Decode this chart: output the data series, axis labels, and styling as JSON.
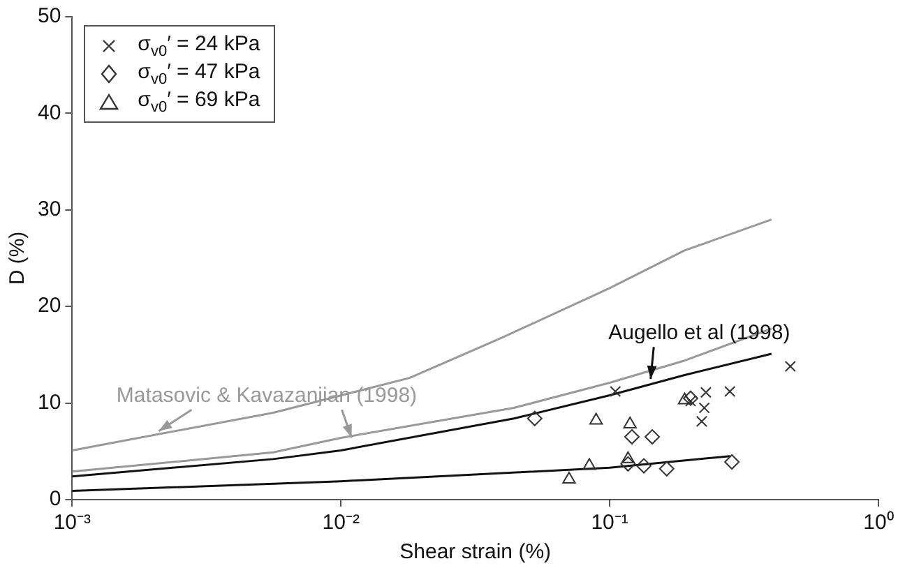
{
  "chart_data": {
    "type": "scatter",
    "xlabel": "Shear strain (%)",
    "ylabel": "D (%)",
    "log": "x",
    "xlim": [
      0.001,
      1
    ],
    "xticks": [
      {
        "value": 0.001,
        "label": "10⁻³"
      },
      {
        "value": 0.01,
        "label": "10⁻²"
      },
      {
        "value": 0.1,
        "label": "10⁻¹"
      },
      {
        "value": 1,
        "label": "10⁰"
      }
    ],
    "ylim": [
      0,
      50
    ],
    "yticks": [
      0,
      10,
      20,
      30,
      40,
      50
    ],
    "grid": false,
    "legend": "top left",
    "series": [
      {
        "name": "σ$_{v0}$′ = 24 kPa",
        "color": "#333333",
        "marker": "cross",
        "x": [
          0.105,
          0.2,
          0.228,
          0.225,
          0.22,
          0.28,
          0.47
        ],
        "values": [
          11.2,
          10.2,
          11.1,
          9.5,
          8.1,
          11.2,
          13.8
        ]
      },
      {
        "name": "σ$_{v0}$′ = 47 kPa",
        "color": "#333333",
        "marker": "diamond",
        "x": [
          0.0526,
          0.2,
          0.121,
          0.144,
          0.117,
          0.134,
          0.163,
          0.285
        ],
        "values": [
          8.4,
          10.5,
          6.5,
          6.5,
          3.7,
          3.5,
          3.2,
          3.9
        ]
      },
      {
        "name": "σ$_{v0}$′ = 69 kPa",
        "color": "#333333",
        "marker": "triangle",
        "x": [
          0.0706,
          0.084,
          0.089,
          0.119,
          0.117,
          0.19
        ],
        "values": [
          2.1,
          3.5,
          8.2,
          7.8,
          4.2,
          10.3
        ]
      },
      {
        "type": "line",
        "color": "#999999",
        "marker": "none",
        "x": [
          0.001,
          0.0056,
          0.018,
          0.04,
          0.1,
          0.19,
          0.4
        ],
        "values": [
          5.1,
          9.0,
          12.6,
          16.8,
          21.9,
          25.8,
          29.0
        ]
      },
      {
        "type": "line",
        "color": "#999999",
        "marker": "none",
        "x": [
          0.001,
          0.0056,
          0.01,
          0.044,
          0.1,
          0.19,
          0.4
        ],
        "values": [
          2.9,
          4.9,
          6.4,
          9.5,
          12.1,
          14.4,
          17.7
        ]
      },
      {
        "type": "line",
        "color": "#111111",
        "marker": "none",
        "x": [
          0.001,
          0.0056,
          0.01,
          0.044,
          0.1,
          0.19,
          0.4
        ],
        "values": [
          2.4,
          4.2,
          5.1,
          8.4,
          10.8,
          12.9,
          15.1
        ]
      },
      {
        "type": "line",
        "color": "#111111",
        "marker": "none",
        "x": [
          0.001,
          0.01,
          0.1,
          0.28
        ],
        "values": [
          0.9,
          1.9,
          3.3,
          4.5
        ]
      }
    ],
    "annotations": [
      {
        "text": "Matasovic & Kavazanjian (1998)",
        "x": 0.0021,
        "y": 7.1
      },
      {
        "text": "Augello et al (1998)",
        "x": 0.142,
        "y": 12.5
      }
    ]
  }
}
